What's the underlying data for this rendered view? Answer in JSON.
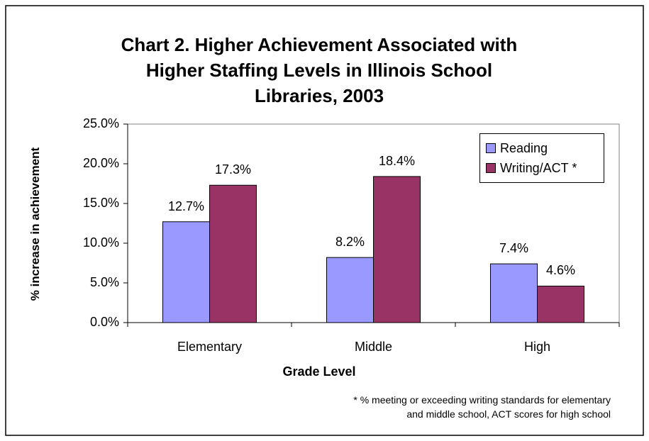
{
  "title": {
    "line1": "Chart 2. Higher Achievement Associated with",
    "line2": "Higher Staffing Levels in Illinois School",
    "line3": "Libraries, 2003"
  },
  "footnote": {
    "line1": "* % meeting or exceeding writing standards for elementary",
    "line2": "and middle school, ACT scores for high school"
  },
  "chart_data": {
    "type": "bar",
    "title": "Chart 2. Higher Achievement Associated with Higher Staffing Levels in Illinois School Libraries, 2003",
    "xlabel": "Grade Level",
    "ylabel": "% increase in achievement",
    "categories": [
      "Elementary",
      "Middle",
      "High"
    ],
    "series": [
      {
        "name": "Reading",
        "values": [
          12.7,
          8.2,
          7.4
        ],
        "labels": [
          "12.7%",
          "8.2%",
          "7.4%"
        ],
        "color": "#9999ff"
      },
      {
        "name": "Writing/ACT *",
        "values": [
          17.3,
          18.4,
          4.6
        ],
        "labels": [
          "17.3%",
          "18.4%",
          "4.6%"
        ],
        "color": "#993366"
      }
    ],
    "ylim": [
      0,
      25
    ],
    "yticks": [
      "0.0%",
      "5.0%",
      "10.0%",
      "15.0%",
      "20.0%",
      "25.0%"
    ],
    "grid": false,
    "legend": "top-right"
  }
}
